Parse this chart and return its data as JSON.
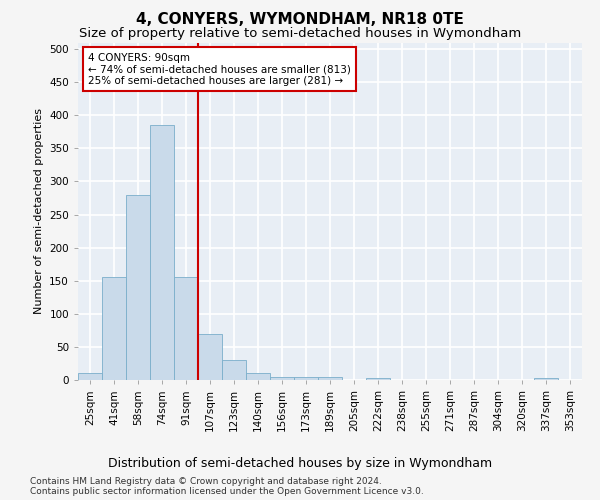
{
  "title": "4, CONYERS, WYMONDHAM, NR18 0TE",
  "subtitle": "Size of property relative to semi-detached houses in Wymondham",
  "xlabel": "Distribution of semi-detached houses by size in Wymondham",
  "ylabel": "Number of semi-detached properties",
  "categories": [
    "25sqm",
    "41sqm",
    "58sqm",
    "74sqm",
    "91sqm",
    "107sqm",
    "123sqm",
    "140sqm",
    "156sqm",
    "173sqm",
    "189sqm",
    "205sqm",
    "222sqm",
    "238sqm",
    "255sqm",
    "271sqm",
    "287sqm",
    "304sqm",
    "320sqm",
    "337sqm",
    "353sqm"
  ],
  "values": [
    10,
    155,
    280,
    385,
    155,
    70,
    30,
    10,
    5,
    5,
    5,
    0,
    3,
    0,
    0,
    0,
    0,
    0,
    0,
    3,
    0
  ],
  "bar_color": "#c9daea",
  "bar_edge_color": "#7aaecb",
  "vline_index": 4,
  "vline_color": "#cc0000",
  "annotation_text": "4 CONYERS: 90sqm\n← 74% of semi-detached houses are smaller (813)\n25% of semi-detached houses are larger (281) →",
  "annotation_box_facecolor": "#ffffff",
  "annotation_box_edgecolor": "#cc0000",
  "ylim": [
    0,
    510
  ],
  "yticks": [
    0,
    50,
    100,
    150,
    200,
    250,
    300,
    350,
    400,
    450,
    500
  ],
  "bg_color": "#f5f5f5",
  "plot_bg_color": "#e8eef5",
  "grid_color": "#ffffff",
  "title_fontsize": 11,
  "subtitle_fontsize": 9.5,
  "xlabel_fontsize": 9,
  "ylabel_fontsize": 8,
  "tick_fontsize": 7.5,
  "annotation_fontsize": 7.5,
  "footer_fontsize": 6.5,
  "footer_line1": "Contains HM Land Registry data © Crown copyright and database right 2024.",
  "footer_line2": "Contains public sector information licensed under the Open Government Licence v3.0."
}
